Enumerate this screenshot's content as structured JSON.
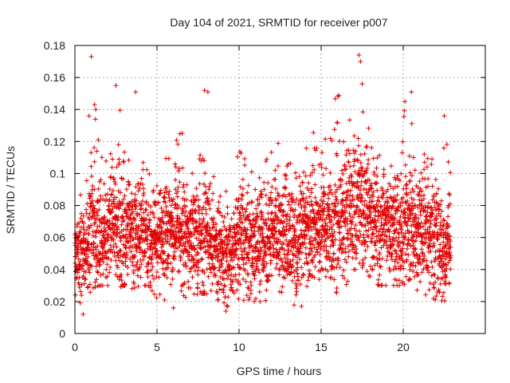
{
  "chart_data": {
    "type": "scatter",
    "title": "Day 104 of 2021, SRMTID for receiver p007",
    "xlabel": "GPS time / hours",
    "ylabel": "SRMTID / TECUs",
    "xlim": [
      0,
      25
    ],
    "ylim": [
      0,
      0.18
    ],
    "xticks": [
      0,
      5,
      10,
      15,
      20
    ],
    "xtick_labels": [
      "0",
      "5",
      "10",
      "15",
      "20"
    ],
    "yticks": [
      0,
      0.02,
      0.04,
      0.06,
      0.08,
      0.1,
      0.12,
      0.14,
      0.16,
      0.18
    ],
    "ytick_labels": [
      "0",
      "0.02",
      "0.04",
      "0.06",
      "0.08",
      "0.1",
      "0.12",
      "0.14",
      "0.16",
      "0.18"
    ],
    "grid": true,
    "marker": "+",
    "color": "#e00000",
    "x_data_range": [
      0,
      22.9
    ],
    "envelope": {
      "hours": [
        0,
        0.5,
        1,
        1.5,
        2,
        2.5,
        3,
        3.5,
        4,
        4.5,
        5,
        5.5,
        6,
        6.5,
        7,
        7.5,
        8,
        8.5,
        9,
        9.5,
        10,
        10.5,
        11,
        11.5,
        12,
        12.5,
        13,
        13.5,
        14,
        14.5,
        15,
        15.5,
        16,
        16.5,
        17,
        17.5,
        18,
        18.5,
        19,
        19.5,
        20,
        20.5,
        21,
        21.5,
        22,
        22.5,
        22.9
      ],
      "median": [
        0.052,
        0.048,
        0.062,
        0.064,
        0.06,
        0.066,
        0.064,
        0.06,
        0.064,
        0.06,
        0.056,
        0.06,
        0.06,
        0.062,
        0.058,
        0.06,
        0.062,
        0.056,
        0.05,
        0.048,
        0.056,
        0.058,
        0.056,
        0.056,
        0.06,
        0.062,
        0.06,
        0.056,
        0.062,
        0.064,
        0.068,
        0.066,
        0.072,
        0.074,
        0.076,
        0.078,
        0.07,
        0.068,
        0.066,
        0.062,
        0.07,
        0.068,
        0.066,
        0.062,
        0.058,
        0.05,
        0.052
      ],
      "spread": [
        0.012,
        0.014,
        0.02,
        0.018,
        0.016,
        0.018,
        0.02,
        0.018,
        0.018,
        0.016,
        0.015,
        0.016,
        0.016,
        0.016,
        0.016,
        0.018,
        0.02,
        0.017,
        0.015,
        0.015,
        0.017,
        0.017,
        0.016,
        0.016,
        0.017,
        0.018,
        0.018,
        0.017,
        0.018,
        0.018,
        0.019,
        0.019,
        0.02,
        0.021,
        0.022,
        0.02,
        0.018,
        0.018,
        0.017,
        0.017,
        0.019,
        0.019,
        0.018,
        0.018,
        0.017,
        0.015,
        0.014
      ],
      "max": [
        0.08,
        0.09,
        0.173,
        0.12,
        0.11,
        0.155,
        0.13,
        0.15,
        0.11,
        0.1,
        0.095,
        0.11,
        0.12,
        0.13,
        0.12,
        0.11,
        0.152,
        0.11,
        0.11,
        0.1,
        0.115,
        0.11,
        0.105,
        0.105,
        0.127,
        0.12,
        0.115,
        0.11,
        0.13,
        0.13,
        0.12,
        0.14,
        0.15,
        0.146,
        0.173,
        0.14,
        0.125,
        0.12,
        0.11,
        0.1,
        0.145,
        0.152,
        0.13,
        0.14,
        0.11,
        0.136,
        0.1
      ],
      "min": [
        0.025,
        0.012,
        0.028,
        0.03,
        0.03,
        0.028,
        0.03,
        0.028,
        0.03,
        0.03,
        0.022,
        0.02,
        0.016,
        0.025,
        0.02,
        0.025,
        0.025,
        0.022,
        0.02,
        0.015,
        0.022,
        0.02,
        0.02,
        0.02,
        0.02,
        0.025,
        0.02,
        0.017,
        0.025,
        0.03,
        0.035,
        0.03,
        0.025,
        0.03,
        0.04,
        0.04,
        0.035,
        0.03,
        0.03,
        0.03,
        0.03,
        0.035,
        0.022,
        0.025,
        0.02,
        0.019,
        0.025
      ]
    },
    "notable_points": [
      {
        "x": 1.0,
        "y": 0.173
      },
      {
        "x": 1.2,
        "y": 0.143
      },
      {
        "x": 2.5,
        "y": 0.155
      },
      {
        "x": 3.7,
        "y": 0.151
      },
      {
        "x": 7.9,
        "y": 0.152
      },
      {
        "x": 8.1,
        "y": 0.151
      },
      {
        "x": 17.3,
        "y": 0.174
      },
      {
        "x": 17.4,
        "y": 0.17
      },
      {
        "x": 17.5,
        "y": 0.156
      },
      {
        "x": 20.5,
        "y": 0.151
      },
      {
        "x": 20.1,
        "y": 0.145
      },
      {
        "x": 22.5,
        "y": 0.136
      },
      {
        "x": 0.5,
        "y": 0.012
      },
      {
        "x": 9.2,
        "y": 0.014
      },
      {
        "x": 13.8,
        "y": 0.017
      },
      {
        "x": 6.0,
        "y": 0.016
      }
    ],
    "point_count": 3600
  }
}
